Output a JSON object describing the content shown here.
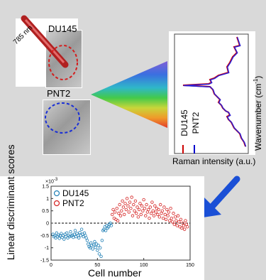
{
  "top": {
    "laser_label": "785 nm",
    "cell1_label": "DU145",
    "cell2_label": "PNT2",
    "spectrum_ylabel": "Wavenumber (cm",
    "spectrum_ylabel_exp": "-1",
    "spectrum_ylabel_end": ")",
    "spectrum_xlabel": "Raman intensity (a.u.)",
    "legend": [
      {
        "name": "DU145",
        "color": "#cc0000"
      },
      {
        "name": "PNT2",
        "color": "#0000cc"
      }
    ]
  },
  "arrow_color": "#1a4fd6",
  "chart_data": {
    "type": "scatter",
    "title": "",
    "xlabel": "Cell number",
    "ylabel": "Linear discriminant scores",
    "xlim": [
      0,
      150
    ],
    "ylim": [
      -1.5,
      1.5
    ],
    "ymult": "×10",
    "ymult_exp": "-3",
    "xticks": [
      "0",
      "50",
      "100",
      "150"
    ],
    "yticks": [
      "1.5",
      "1",
      "0.5",
      "0",
      "-0.5",
      "-1",
      "-1.5"
    ],
    "reference_line": 0,
    "series": [
      {
        "name": "DU145",
        "color": "#1f7fb5",
        "points": [
          [
            2,
            -0.45
          ],
          [
            3,
            -0.55
          ],
          [
            4,
            -0.5
          ],
          [
            5,
            -0.6
          ],
          [
            6,
            -0.4
          ],
          [
            7,
            -0.55
          ],
          [
            8,
            -0.48
          ],
          [
            9,
            -0.62
          ],
          [
            10,
            -0.5
          ],
          [
            11,
            -0.42
          ],
          [
            12,
            -0.58
          ],
          [
            13,
            -0.5
          ],
          [
            14,
            -0.65
          ],
          [
            15,
            -0.45
          ],
          [
            16,
            -0.55
          ],
          [
            17,
            -0.4
          ],
          [
            18,
            -0.6
          ],
          [
            19,
            -0.5
          ],
          [
            20,
            -0.55
          ],
          [
            21,
            -0.35
          ],
          [
            22,
            -0.52
          ],
          [
            23,
            -0.48
          ],
          [
            24,
            -0.58
          ],
          [
            25,
            -0.45
          ],
          [
            26,
            -0.3
          ],
          [
            27,
            -0.55
          ],
          [
            28,
            -0.42
          ],
          [
            29,
            -0.5
          ],
          [
            30,
            -0.6
          ],
          [
            31,
            -0.38
          ],
          [
            32,
            -0.5
          ],
          [
            33,
            -0.25
          ],
          [
            34,
            -0.45
          ],
          [
            35,
            -0.55
          ],
          [
            36,
            -0.4
          ],
          [
            37,
            -0.5
          ],
          [
            38,
            -0.6
          ],
          [
            39,
            -0.7
          ],
          [
            40,
            -0.85
          ],
          [
            41,
            -0.95
          ],
          [
            42,
            -1.0
          ],
          [
            43,
            -0.8
          ],
          [
            44,
            -0.9
          ],
          [
            45,
            -1.05
          ],
          [
            46,
            -0.88
          ],
          [
            47,
            -0.75
          ],
          [
            48,
            -0.98
          ],
          [
            49,
            -0.85
          ],
          [
            50,
            -1.1
          ],
          [
            51,
            -0.9
          ],
          [
            52,
            -1.25
          ],
          [
            53,
            -1.0
          ],
          [
            54,
            -1.35
          ],
          [
            55,
            -0.7
          ],
          [
            56,
            -0.3
          ],
          [
            57,
            -0.25
          ],
          [
            58,
            -0.15
          ],
          [
            59,
            -0.3
          ],
          [
            60,
            -0.1
          ],
          [
            61,
            -0.2
          ],
          [
            62,
            -0.15
          ],
          [
            63,
            -0.05
          ],
          [
            64,
            0.0
          ],
          [
            65,
            -0.1
          ]
        ]
      },
      {
        "name": "PNT2",
        "color": "#d42020",
        "points": [
          [
            66,
            0.35
          ],
          [
            67,
            0.55
          ],
          [
            68,
            0.2
          ],
          [
            69,
            0.45
          ],
          [
            70,
            0.15
          ],
          [
            71,
            0.6
          ],
          [
            72,
            0.1
          ],
          [
            73,
            0.4
          ],
          [
            74,
            0.75
          ],
          [
            75,
            0.3
          ],
          [
            76,
            0.5
          ],
          [
            77,
            0.9
          ],
          [
            78,
            0.65
          ],
          [
            79,
            0.35
          ],
          [
            80,
            0.8
          ],
          [
            81,
            0.55
          ],
          [
            82,
            1.0
          ],
          [
            83,
            0.7
          ],
          [
            84,
            0.45
          ],
          [
            85,
            0.85
          ],
          [
            86,
            0.6
          ],
          [
            87,
            1.05
          ],
          [
            88,
            0.3
          ],
          [
            89,
            0.75
          ],
          [
            90,
            0.5
          ],
          [
            91,
            0.9
          ],
          [
            92,
            0.4
          ],
          [
            93,
            0.65
          ],
          [
            94,
            0.25
          ],
          [
            95,
            0.55
          ],
          [
            96,
            0.8
          ],
          [
            97,
            0.35
          ],
          [
            98,
            0.7
          ],
          [
            99,
            0.5
          ],
          [
            100,
            0.95
          ],
          [
            101,
            0.6
          ],
          [
            102,
            0.3
          ],
          [
            103,
            0.75
          ],
          [
            104,
            0.45
          ],
          [
            105,
            0.55
          ],
          [
            106,
            0.2
          ],
          [
            107,
            0.65
          ],
          [
            108,
            0.4
          ],
          [
            109,
            0.85
          ],
          [
            110,
            0.5
          ],
          [
            111,
            0.3
          ],
          [
            112,
            0.7
          ],
          [
            113,
            0.45
          ],
          [
            114,
            0.6
          ],
          [
            115,
            0.35
          ],
          [
            116,
            0.55
          ],
          [
            117,
            0.25
          ],
          [
            118,
            0.75
          ],
          [
            119,
            0.4
          ],
          [
            120,
            0.5
          ],
          [
            121,
            0.2
          ],
          [
            122,
            0.65
          ],
          [
            123,
            0.35
          ],
          [
            124,
            0.15
          ],
          [
            125,
            0.55
          ],
          [
            126,
            0.3
          ],
          [
            127,
            0.45
          ],
          [
            128,
            0.1
          ],
          [
            129,
            0.6
          ],
          [
            130,
            0.2
          ],
          [
            131,
            0.05
          ],
          [
            132,
            0.4
          ],
          [
            133,
            -0.05
          ],
          [
            134,
            0.25
          ],
          [
            135,
            0.1
          ],
          [
            136,
            -0.1
          ],
          [
            137,
            0.3
          ],
          [
            138,
            0.05
          ],
          [
            139,
            -0.15
          ],
          [
            140,
            0.15
          ],
          [
            141,
            -0.2
          ],
          [
            142,
            0.0
          ],
          [
            143,
            -0.1
          ],
          [
            144,
            -0.25
          ],
          [
            145,
            0.1
          ],
          [
            146,
            -0.05
          ],
          [
            147,
            -0.15
          ]
        ]
      }
    ]
  }
}
